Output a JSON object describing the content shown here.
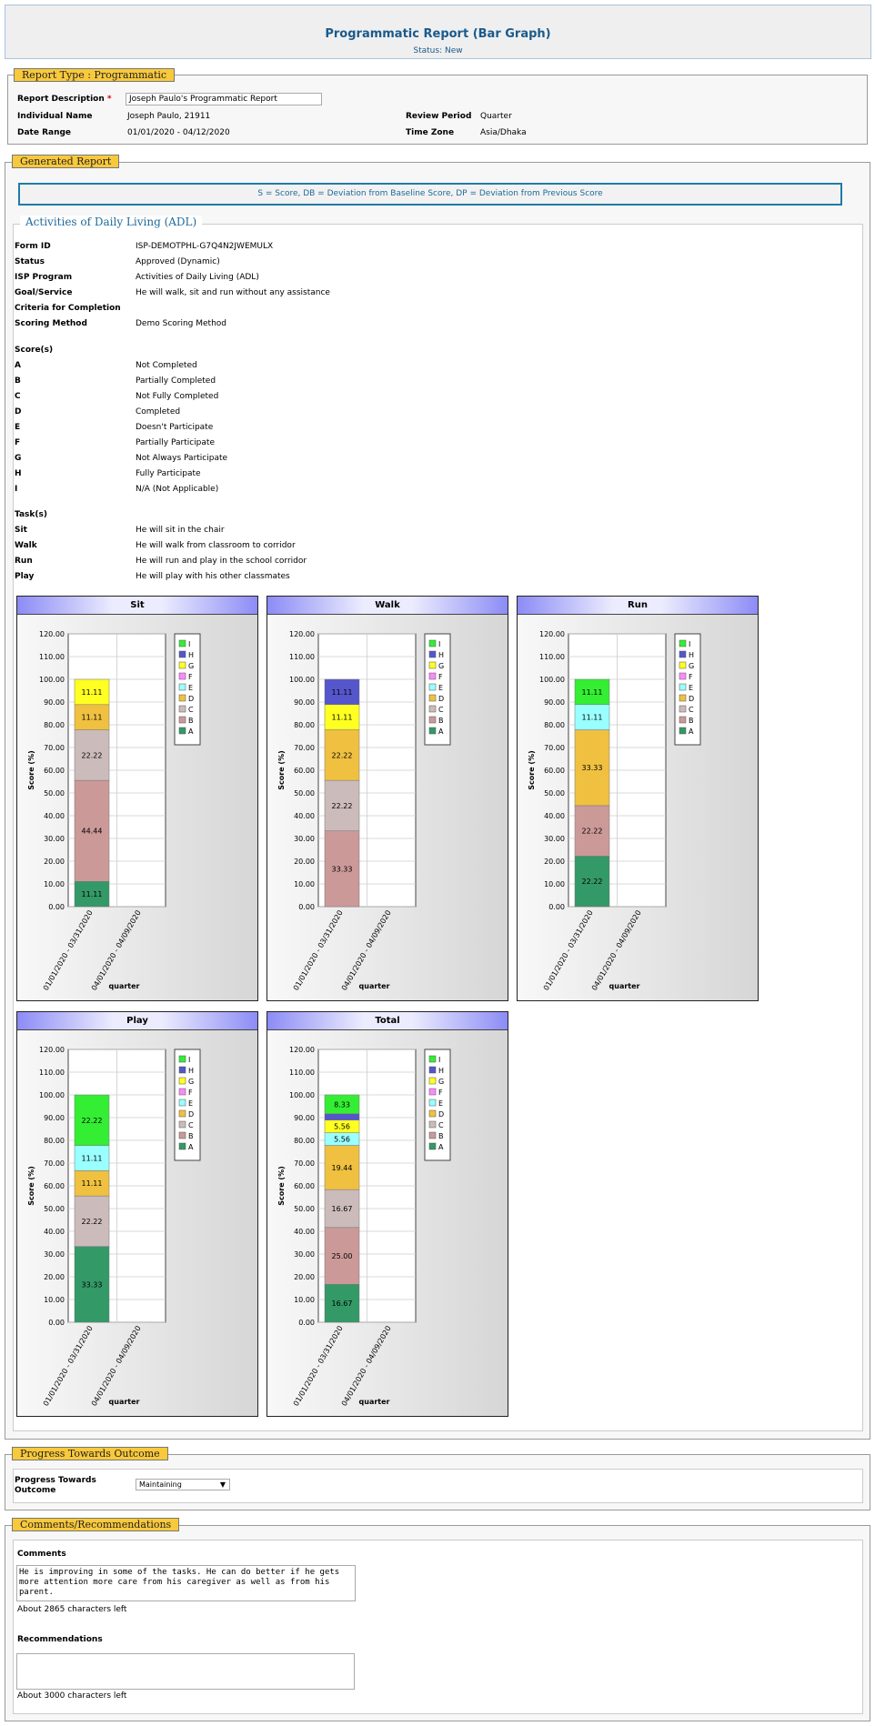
{
  "header": {
    "title": "Programmatic Report (Bar Graph)",
    "status": "Status: New"
  },
  "report_type": {
    "legend": "Report Type :  Programmatic",
    "desc_label": "Report Description",
    "req": "*",
    "desc_value": "Joseph Paulo's Programmatic Report",
    "ind_label": "Individual Name",
    "ind_value": "Joseph  Paulo,  21911",
    "date_label": "Date Range",
    "date_value": "01/01/2020 - 04/12/2020",
    "period_label": "Review Period",
    "period_value": "Quarter",
    "tz_label": "Time Zone",
    "tz_value": "Asia/Dhaka"
  },
  "generated": {
    "legend": "Generated Report",
    "key": "S = Score,  DB = Deviation from Baseline Score,  DP = Deviation from Previous Score",
    "section": "Activities of Daily Living (ADL)"
  },
  "details": [
    {
      "label": "Form ID",
      "value": "ISP-DEMOTPHL-G7Q4N2JWEMULX"
    },
    {
      "label": "Status",
      "value": "Approved (Dynamic)"
    },
    {
      "label": "ISP Program",
      "value": "Activities of Daily Living (ADL)"
    },
    {
      "label": "Goal/Service",
      "value": "He will walk, sit and run without any assistance"
    },
    {
      "label": "Criteria for Completion",
      "value": ""
    },
    {
      "label": "Scoring Method",
      "value": "Demo Scoring Method"
    }
  ],
  "scores_title": "Score(s)",
  "scores": [
    {
      "label": "A",
      "value": "Not Completed"
    },
    {
      "label": "B",
      "value": "Partially Completed"
    },
    {
      "label": "C",
      "value": "Not Fully Completed"
    },
    {
      "label": "D",
      "value": "Completed"
    },
    {
      "label": "E",
      "value": "Doesn't Participate"
    },
    {
      "label": "F",
      "value": "Partially Participate"
    },
    {
      "label": "G",
      "value": "Not Always Participate"
    },
    {
      "label": "H",
      "value": "Fully Participate"
    },
    {
      "label": "I",
      "value": "N/A (Not Applicable)"
    }
  ],
  "tasks_title": "Task(s)",
  "tasks": [
    {
      "label": "Sit",
      "value": "He will sit in the chair"
    },
    {
      "label": "Walk",
      "value": "He will walk from classroom to corridor"
    },
    {
      "label": "Run",
      "value": "He will run and play in the school corridor"
    },
    {
      "label": "Play",
      "value": "He will play with his other classmates"
    }
  ],
  "chart_data": [
    {
      "type": "bar",
      "title": "Sit",
      "categories": [
        "01/01/2020 - 03/31/2020",
        "04/01/2020 - 04/09/2020"
      ],
      "xlabel": "quarter",
      "ylabel": "Score (%)",
      "ylim": [
        0,
        120
      ],
      "series": [
        {
          "name": "A",
          "values": [
            11.11,
            0
          ]
        },
        {
          "name": "B",
          "values": [
            44.44,
            0
          ]
        },
        {
          "name": "C",
          "values": [
            22.22,
            0
          ]
        },
        {
          "name": "D",
          "values": [
            11.11,
            0
          ]
        },
        {
          "name": "G",
          "values": [
            11.11,
            0
          ]
        }
      ]
    },
    {
      "type": "bar",
      "title": "Walk",
      "categories": [
        "01/01/2020 - 03/31/2020",
        "04/01/2020 - 04/09/2020"
      ],
      "xlabel": "quarter",
      "ylabel": "Score (%)",
      "ylim": [
        0,
        120
      ],
      "series": [
        {
          "name": "B",
          "values": [
            33.33,
            0
          ]
        },
        {
          "name": "C",
          "values": [
            22.22,
            0
          ]
        },
        {
          "name": "D",
          "values": [
            22.22,
            0
          ]
        },
        {
          "name": "G",
          "values": [
            11.11,
            0
          ]
        },
        {
          "name": "H",
          "values": [
            11.11,
            0
          ]
        }
      ]
    },
    {
      "type": "bar",
      "title": "Run",
      "categories": [
        "01/01/2020 - 03/31/2020",
        "04/01/2020 - 04/09/2020"
      ],
      "xlabel": "quarter",
      "ylabel": "Score (%)",
      "ylim": [
        0,
        120
      ],
      "series": [
        {
          "name": "A",
          "values": [
            22.22,
            0
          ]
        },
        {
          "name": "B",
          "values": [
            22.22,
            0
          ]
        },
        {
          "name": "D",
          "values": [
            33.33,
            0
          ]
        },
        {
          "name": "E",
          "values": [
            11.11,
            0
          ]
        },
        {
          "name": "I",
          "values": [
            11.11,
            0
          ]
        }
      ]
    },
    {
      "type": "bar",
      "title": "Play",
      "categories": [
        "01/01/2020 - 03/31/2020",
        "04/01/2020 - 04/09/2020"
      ],
      "xlabel": "quarter",
      "ylabel": "Score (%)",
      "ylim": [
        0,
        120
      ],
      "series": [
        {
          "name": "A",
          "values": [
            33.33,
            0
          ]
        },
        {
          "name": "C",
          "values": [
            22.22,
            0
          ]
        },
        {
          "name": "D",
          "values": [
            11.11,
            0
          ]
        },
        {
          "name": "E",
          "values": [
            11.11,
            0
          ]
        },
        {
          "name": "I",
          "values": [
            22.22,
            0
          ]
        }
      ]
    },
    {
      "type": "bar",
      "title": "Total",
      "categories": [
        "01/01/2020 - 03/31/2020",
        "04/01/2020 - 04/09/2020"
      ],
      "xlabel": "quarter",
      "ylabel": "Score (%)",
      "ylim": [
        0,
        120
      ],
      "series": [
        {
          "name": "A",
          "values": [
            16.67,
            0
          ]
        },
        {
          "name": "B",
          "values": [
            25.0,
            0
          ]
        },
        {
          "name": "C",
          "values": [
            16.67,
            0
          ]
        },
        {
          "name": "D",
          "values": [
            19.44,
            0
          ]
        },
        {
          "name": "E",
          "values": [
            5.56,
            0
          ]
        },
        {
          "name": "G",
          "values": [
            5.56,
            0
          ]
        },
        {
          "name": "H",
          "values": [
            2.78,
            0
          ]
        },
        {
          "name": "I",
          "values": [
            8.33,
            0
          ]
        }
      ]
    }
  ],
  "legend_items": [
    "I",
    "H",
    "G",
    "F",
    "E",
    "D",
    "C",
    "B",
    "A"
  ],
  "colors": {
    "A": "#339966",
    "B": "#cc9999",
    "C": "#ccbbbb",
    "D": "#f0c040",
    "E": "#99ffff",
    "F": "#ff88ff",
    "G": "#ffff22",
    "H": "#5555cc",
    "I": "#33ee33"
  },
  "progress": {
    "legend": "Progress Towards Outcome",
    "label": "Progress Towards Outcome",
    "value": "Maintaining"
  },
  "comments": {
    "legend": "Comments/Recommendations",
    "c_label": "Comments",
    "c_value": "He is improving in some of the tasks. He can do better if he gets more attention more care from his caregiver as well as from his parent.",
    "c_left": "About 2865 characters left",
    "r_label": "Recommendations",
    "r_left": "About 3000 characters left"
  }
}
